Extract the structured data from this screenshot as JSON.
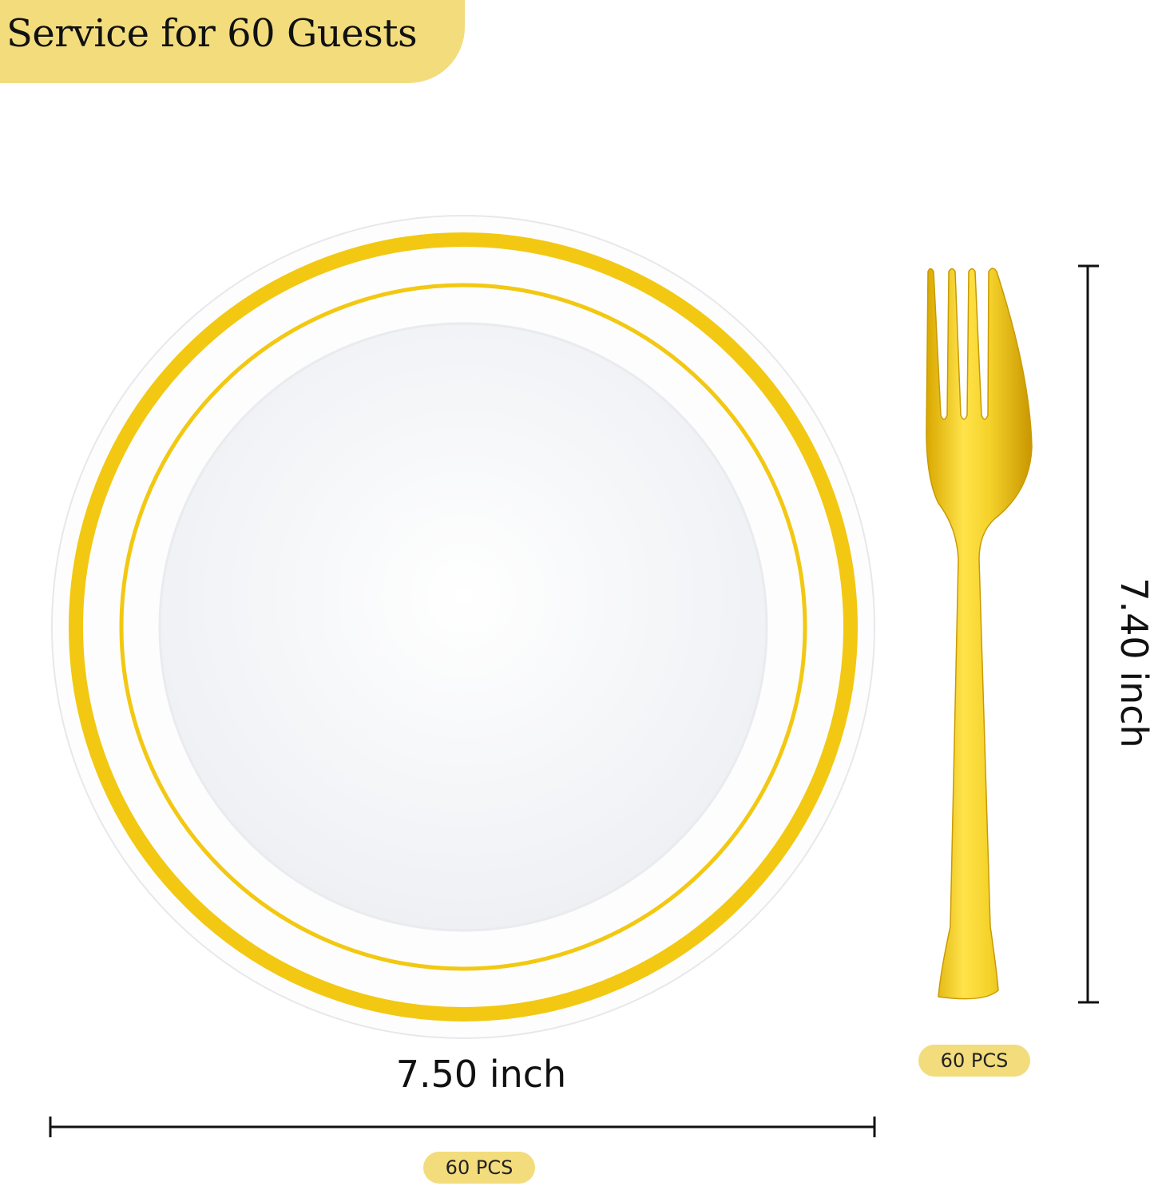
{
  "banner": {
    "title": "Service for 60 Guests",
    "color": "#f3dc7c"
  },
  "plate": {
    "width_label": "7.50 inch",
    "quantity_label": "60 PCS",
    "rim_color": "#f2c812"
  },
  "fork": {
    "length_label": "7.40 inch",
    "quantity_label": "60 PCS",
    "color": "#e8c300"
  }
}
